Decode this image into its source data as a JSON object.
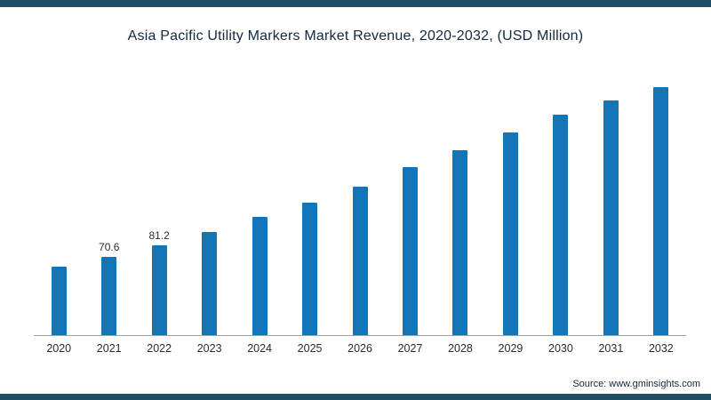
{
  "frame": {
    "color": "#1d4e63"
  },
  "chart_data": {
    "type": "bar",
    "title": "Asia Pacific Utility Markers Market Revenue, 2020-2032, (USD Million)",
    "xlabel": "",
    "ylabel": "",
    "categories": [
      "2020",
      "2021",
      "2022",
      "2023",
      "2024",
      "2025",
      "2026",
      "2027",
      "2028",
      "2029",
      "2030",
      "2031",
      "2032"
    ],
    "values": [
      62,
      70.6,
      81.2,
      93,
      107,
      120,
      134,
      152,
      167,
      183,
      199,
      212,
      224
    ],
    "data_labels": [
      "",
      "70.6",
      "81.2",
      "",
      "",
      "",
      "",
      "",
      "",
      "",
      "",
      "",
      ""
    ],
    "bar_color": "#1375b5",
    "ylim": [
      0,
      240
    ],
    "grid": false,
    "legend": "none"
  },
  "source": {
    "label": "Source: www.gminsights.com"
  }
}
